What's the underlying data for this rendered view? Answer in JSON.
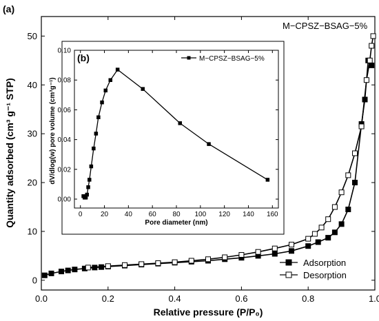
{
  "figure": {
    "panel_a_label": "(a)",
    "panel_b_label": "(b)",
    "sample_label": "M−CPSZ−BSAG−5%"
  },
  "chart_data": [
    {
      "type": "line",
      "panel": "(a)",
      "title": "M−CPSZ−BSAG−5%",
      "xlabel": "Relative pressure (P/P₀)",
      "ylabel": "Quantity adsorbed (cm³ g⁻¹ STP)",
      "xlim": [
        0.0,
        1.0
      ],
      "ylim": [
        -2,
        54
      ],
      "xticks": [
        "0.0",
        "0.2",
        "0.4",
        "0.6",
        "0.8",
        "1.0"
      ],
      "yticks": [
        "0",
        "10",
        "20",
        "30",
        "40",
        "50"
      ],
      "xtick_values": [
        0.0,
        0.2,
        0.4,
        0.6,
        0.8,
        1.0
      ],
      "ytick_values": [
        0,
        10,
        20,
        30,
        40,
        50
      ],
      "legend_position": "bottom-right",
      "grid": false,
      "series": [
        {
          "name": "Adsorption",
          "marker": "filled-square",
          "x": [
            0.01,
            0.03,
            0.06,
            0.08,
            0.1,
            0.13,
            0.16,
            0.18,
            0.2,
            0.25,
            0.3,
            0.35,
            0.4,
            0.45,
            0.5,
            0.55,
            0.6,
            0.65,
            0.7,
            0.75,
            0.8,
            0.83,
            0.86,
            0.88,
            0.9,
            0.92,
            0.94,
            0.96,
            0.97,
            0.98,
            0.99
          ],
          "values": [
            1.0,
            1.4,
            1.8,
            2.0,
            2.2,
            2.4,
            2.6,
            2.7,
            2.8,
            3.0,
            3.2,
            3.4,
            3.6,
            3.8,
            4.0,
            4.3,
            4.6,
            5.0,
            5.4,
            6.0,
            7.0,
            7.8,
            8.7,
            9.8,
            11.5,
            14.5,
            20.0,
            32.0,
            37.0,
            45.0,
            44.0
          ]
        },
        {
          "name": "Desorption",
          "marker": "open-square",
          "x": [
            0.995,
            0.99,
            0.985,
            0.975,
            0.96,
            0.94,
            0.92,
            0.9,
            0.88,
            0.86,
            0.84,
            0.82,
            0.8,
            0.75,
            0.7,
            0.65,
            0.6,
            0.55,
            0.5,
            0.45,
            0.4,
            0.35,
            0.3,
            0.25,
            0.2,
            0.14
          ],
          "values": [
            50.0,
            48.0,
            45.0,
            41.0,
            31.5,
            26.0,
            21.5,
            18.0,
            15.0,
            12.5,
            10.8,
            9.5,
            8.5,
            7.3,
            6.5,
            5.8,
            5.2,
            4.7,
            4.3,
            4.0,
            3.7,
            3.5,
            3.3,
            3.1,
            2.9,
            2.6
          ]
        }
      ]
    },
    {
      "type": "line",
      "panel": "(b)",
      "title": "",
      "xlabel": "Pore diameter (nm)",
      "ylabel": "dV/dlog(w) pore volume (cm³g⁻¹)",
      "xlim": [
        -5,
        165
      ],
      "ylim": [
        -0.006,
        0.1
      ],
      "xticks": [
        "0",
        "20",
        "40",
        "60",
        "80",
        "100",
        "120",
        "140",
        "160"
      ],
      "yticks": [
        "0.00",
        "0.02",
        "0.04",
        "0.06",
        "0.08",
        "0.10"
      ],
      "xtick_values": [
        0,
        20,
        40,
        60,
        80,
        100,
        120,
        140,
        160
      ],
      "ytick_values": [
        0.0,
        0.02,
        0.04,
        0.06,
        0.08,
        0.1
      ],
      "legend_position": "top-right",
      "grid": false,
      "series": [
        {
          "name": "M−CPSZ−BSAG−5%",
          "marker": "filled-square",
          "x": [
            2.5,
            3.5,
            4.5,
            5.5,
            6.5,
            7.5,
            9.0,
            11.0,
            13.0,
            15.0,
            18.0,
            21.0,
            25.0,
            31.0,
            52.0,
            83.0,
            107.0,
            156.0
          ],
          "values": [
            0.002,
            0.001,
            0.001,
            0.003,
            0.008,
            0.013,
            0.022,
            0.034,
            0.044,
            0.055,
            0.065,
            0.073,
            0.08,
            0.087,
            0.074,
            0.051,
            0.037,
            0.013
          ]
        }
      ]
    }
  ]
}
